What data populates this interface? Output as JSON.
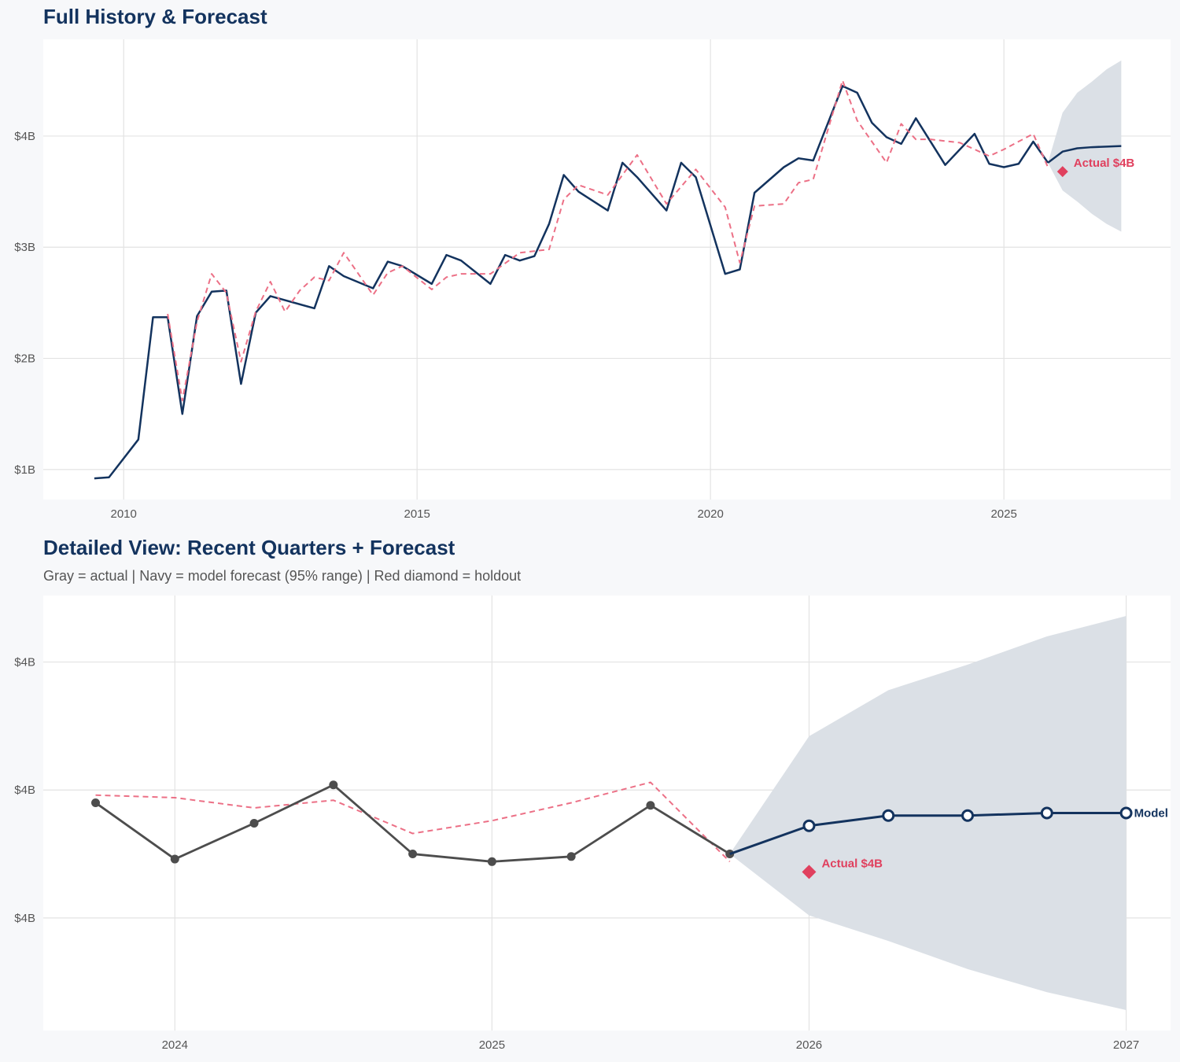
{
  "colors": {
    "background": "#f7f8fa",
    "panel": "#ffffff",
    "grid": "#e3e3e3",
    "navy": "#13335e",
    "actual_gray": "#4d4d4d",
    "fitted_dashed": "#ec7086",
    "holdout": "#e0405e",
    "band": "#dbe0e6"
  },
  "chart_data": [
    {
      "type": "line",
      "title": "Full History & Forecast",
      "xlim": [
        2008.63,
        2027.84
      ],
      "ylim": [
        0.73,
        4.87
      ],
      "grid": true,
      "x_ticks": [
        2010,
        2015,
        2020,
        2025
      ],
      "x_tick_labels": [
        "2010",
        "2015",
        "2020",
        "2025"
      ],
      "y_ticks": [
        1,
        2,
        3,
        4
      ],
      "y_tick_labels": [
        "$1B",
        "$2B",
        "$3B",
        "$4B"
      ],
      "series": [
        {
          "role": "actual",
          "style": "solid-navy",
          "x": [
            2009.5,
            2009.75,
            2010.25,
            2010.5,
            2010.75,
            2011.0,
            2011.25,
            2011.5,
            2011.75,
            2012.0,
            2012.25,
            2012.5,
            2013.25,
            2013.5,
            2013.75,
            2014.25,
            2014.5,
            2014.75,
            2015.25,
            2015.5,
            2015.75,
            2016.25,
            2016.5,
            2016.75,
            2017.0,
            2017.25,
            2017.5,
            2017.75,
            2018.25,
            2018.5,
            2018.75,
            2019.25,
            2019.5,
            2019.75,
            2020.25,
            2020.5,
            2020.75,
            2021.25,
            2021.5,
            2021.75,
            2022.25,
            2022.5,
            2022.75,
            2023.0,
            2023.25,
            2023.5,
            2024.0,
            2024.5,
            2024.75,
            2025.0,
            2025.25,
            2025.5,
            2025.75
          ],
          "y": [
            0.92,
            0.93,
            1.27,
            2.37,
            2.37,
            1.5,
            2.38,
            2.6,
            2.61,
            1.77,
            2.41,
            2.56,
            2.45,
            2.83,
            2.74,
            2.63,
            2.87,
            2.83,
            2.67,
            2.93,
            2.88,
            2.67,
            2.93,
            2.88,
            2.92,
            3.21,
            3.65,
            3.5,
            3.33,
            3.76,
            3.63,
            3.33,
            3.76,
            3.63,
            2.76,
            2.8,
            3.49,
            3.72,
            3.8,
            3.78,
            4.45,
            4.39,
            4.12,
            3.99,
            3.93,
            4.16,
            3.74,
            4.02,
            3.75,
            3.72,
            3.75,
            3.95,
            3.76
          ]
        },
        {
          "role": "fitted",
          "style": "dashed-red",
          "x": [
            2010.75,
            2011.0,
            2011.25,
            2011.5,
            2011.75,
            2012.0,
            2012.25,
            2012.5,
            2012.75,
            2013.0,
            2013.25,
            2013.5,
            2013.75,
            2014.25,
            2014.5,
            2014.75,
            2015.25,
            2015.5,
            2015.75,
            2016.25,
            2016.75,
            2017.25,
            2017.5,
            2017.75,
            2018.25,
            2018.75,
            2019.25,
            2019.75,
            2020.25,
            2020.5,
            2020.75,
            2021.25,
            2021.5,
            2021.75,
            2022.25,
            2022.5,
            2023.0,
            2023.25,
            2023.5,
            2023.75,
            2024.25,
            2024.75,
            2025.0,
            2025.5,
            2025.75
          ],
          "y": [
            2.4,
            1.62,
            2.33,
            2.76,
            2.59,
            1.97,
            2.42,
            2.69,
            2.42,
            2.61,
            2.73,
            2.7,
            2.95,
            2.57,
            2.77,
            2.83,
            2.62,
            2.73,
            2.76,
            2.76,
            2.95,
            2.98,
            3.43,
            3.56,
            3.47,
            3.83,
            3.39,
            3.7,
            3.36,
            2.86,
            3.37,
            3.39,
            3.58,
            3.61,
            4.5,
            4.14,
            3.76,
            4.11,
            3.97,
            3.97,
            3.94,
            3.82,
            3.88,
            4.02,
            3.72
          ]
        },
        {
          "role": "forecast",
          "style": "solid-navy-thick",
          "x": [
            2025.75,
            2026.0,
            2026.25,
            2026.5,
            2026.75,
            2027.0
          ],
          "y": [
            3.76,
            3.86,
            3.89,
            3.9,
            3.905,
            3.91
          ]
        }
      ],
      "band": {
        "x": [
          2025.75,
          2026.0,
          2026.25,
          2026.5,
          2026.75,
          2027.0
        ],
        "upper": [
          3.76,
          4.21,
          4.39,
          4.49,
          4.6,
          4.68
        ],
        "lower": [
          3.76,
          3.51,
          3.41,
          3.3,
          3.21,
          3.14
        ]
      },
      "holdout": {
        "x": 2026.0,
        "y": 3.68,
        "label": "Actual $4B"
      }
    },
    {
      "type": "line",
      "title": "Detailed View: Recent Quarters + Forecast",
      "subtitle": "Gray = actual  |  Navy = model forecast (95% range)  |  Red diamond = holdout",
      "xlim": [
        2023.585,
        2027.14
      ],
      "ylim": [
        3.06,
        4.76
      ],
      "grid": true,
      "x_ticks": [
        2024,
        2025,
        2026,
        2027
      ],
      "x_tick_labels": [
        "2024",
        "2025",
        "2026",
        "2027"
      ],
      "y_ticks": [
        3.5,
        4.0,
        4.5
      ],
      "y_tick_labels": [
        "$4B",
        "$4B",
        "$4B"
      ],
      "series": [
        {
          "role": "fitted",
          "style": "dashed-red",
          "x": [
            2023.75,
            2024.0,
            2024.25,
            2024.5,
            2024.75,
            2025.0,
            2025.25,
            2025.5,
            2025.75
          ],
          "y": [
            3.98,
            3.97,
            3.93,
            3.96,
            3.83,
            3.88,
            3.95,
            4.03,
            3.72
          ]
        },
        {
          "role": "actual",
          "style": "gray-markers",
          "x": [
            2023.75,
            2024.0,
            2024.25,
            2024.5,
            2024.75,
            2025.0,
            2025.25,
            2025.5,
            2025.75
          ],
          "y": [
            3.95,
            3.73,
            3.87,
            4.02,
            3.75,
            3.72,
            3.74,
            3.94,
            3.75
          ]
        },
        {
          "name": "Model",
          "role": "forecast",
          "style": "navy-open-markers",
          "x": [
            2025.75,
            2026.0,
            2026.25,
            2026.5,
            2026.75,
            2027.0
          ],
          "y": [
            3.75,
            3.86,
            3.9,
            3.9,
            3.91,
            3.91
          ]
        }
      ],
      "band": {
        "x": [
          2025.75,
          2026.0,
          2026.25,
          2026.5,
          2026.75,
          2027.0
        ],
        "upper": [
          3.75,
          4.21,
          4.39,
          4.49,
          4.6,
          4.68
        ],
        "lower": [
          3.75,
          3.51,
          3.41,
          3.3,
          3.21,
          3.14
        ]
      },
      "holdout": {
        "x": 2026.0,
        "y": 3.68,
        "label": "Actual $4B"
      },
      "end_label": "Model"
    }
  ]
}
